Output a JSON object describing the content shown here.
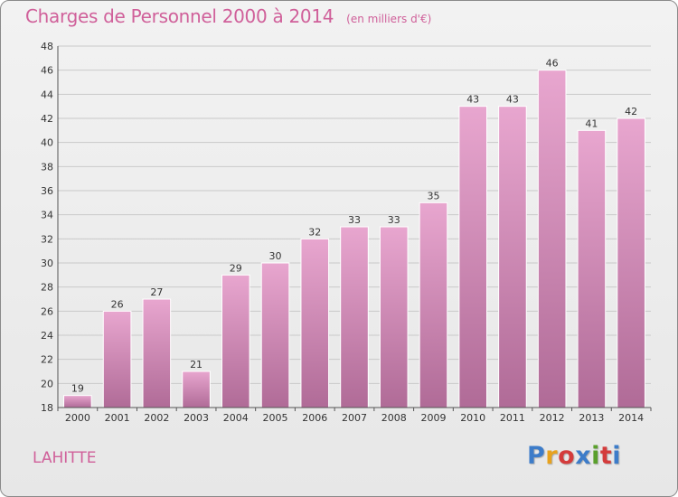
{
  "header": {
    "title": "Charges de Personnel 2000 à 2014",
    "unit": "(en milliers d'€)"
  },
  "footer": {
    "commune": "LAHITTE",
    "logo_text": "Proxiti",
    "logo_colors": [
      "#3d7cc9",
      "#e8a21d",
      "#d43c3c",
      "#3d7cc9",
      "#5aa02c",
      "#d43c3c",
      "#3d7cc9"
    ]
  },
  "chart_data": {
    "type": "bar",
    "title": "Charges de Personnel 2000 à 2014",
    "unit": "(en milliers d'€)",
    "xlabel": "",
    "ylabel": "",
    "categories": [
      "2000",
      "2001",
      "2002",
      "2003",
      "2004",
      "2005",
      "2006",
      "2007",
      "2008",
      "2009",
      "2010",
      "2011",
      "2012",
      "2013",
      "2014"
    ],
    "values": [
      19,
      26,
      27,
      21,
      29,
      30,
      32,
      33,
      33,
      35,
      43,
      43,
      46,
      41,
      42
    ],
    "ylim": [
      18,
      48
    ],
    "yticks": [
      18,
      20,
      22,
      24,
      26,
      28,
      30,
      32,
      34,
      36,
      38,
      40,
      42,
      44,
      46,
      48
    ],
    "grid": true,
    "bar_color_top": "#e8a6cf",
    "bar_color_bottom": "#b06b97",
    "legend": "none"
  }
}
